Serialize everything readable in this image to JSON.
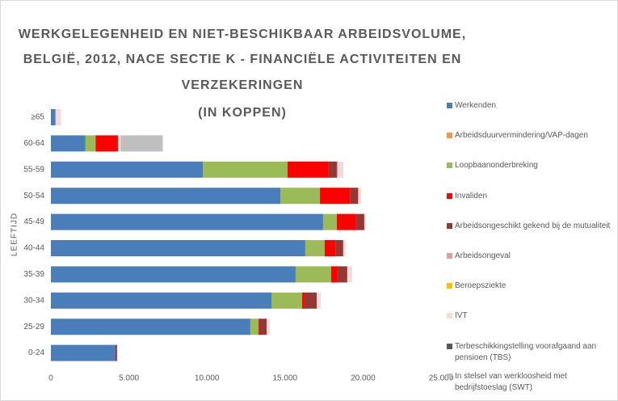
{
  "chart_data": {
    "type": "bar",
    "orientation": "horizontal",
    "stacked": true,
    "title": [
      "WERKGELEGENHEID EN NIET-BESCHIKBAAR ARBEIDSVOLUME,",
      "BELGIË, 2012, NACE SECTIE K - FINANCIËLE ACTIVITEITEN EN",
      "VERZEKERINGEN",
      "(IN KOPPEN)"
    ],
    "y_label": "LEEFTIJD",
    "categories": [
      "≥65",
      "60-64",
      "55-59",
      "50-54",
      "45-49",
      "40-44",
      "35-39",
      "30-34",
      "25-29",
      "0-24"
    ],
    "series": [
      {
        "name": "Werkenden",
        "color": "#4a7ebb",
        "values": [
          300,
          2200,
          9730,
          14700,
          17440,
          16300,
          15680,
          14130,
          12780,
          4140
        ]
      },
      {
        "name": "Arbeidsduurvermindering/VAP-dagen",
        "color": "#f79646",
        "values": [
          0,
          0,
          0,
          0,
          0,
          0,
          0,
          0,
          0,
          0
        ]
      },
      {
        "name": "Loopbaanonderbreking",
        "color": "#9bbb59",
        "values": [
          0,
          670,
          5430,
          2540,
          880,
          1240,
          2280,
          1970,
          520,
          0
        ]
      },
      {
        "name": "Invaliden",
        "color": "#ff0000",
        "values": [
          0,
          1350,
          2640,
          1920,
          1240,
          720,
          410,
          150,
          50,
          0
        ]
      },
      {
        "name": "Arbeidsongeschikt gekend bij de mutualiteit",
        "color": "#953735",
        "values": [
          0,
          100,
          520,
          520,
          520,
          470,
          620,
          780,
          470,
          100
        ]
      },
      {
        "name": "Arbeidsongeval",
        "color": "#e6999a",
        "values": [
          0,
          0,
          60,
          50,
          0,
          0,
          0,
          0,
          0,
          0
        ]
      },
      {
        "name": "Beroepsziekte",
        "color": "#ffc000",
        "values": [
          0,
          0,
          0,
          0,
          0,
          0,
          0,
          0,
          0,
          0
        ]
      },
      {
        "name": "IVT",
        "color": "#f2dcdb",
        "values": [
          350,
          150,
          360,
          150,
          100,
          150,
          310,
          260,
          200,
          30
        ]
      },
      {
        "name": "Terbeschikkingstelling voorafgaand aan pensioen (TBS)",
        "color": "#595959",
        "values": [
          0,
          0,
          0,
          0,
          0,
          0,
          0,
          0,
          0,
          0
        ]
      },
      {
        "name": "In stelsel van werkloosheid met bedrijfstoeslag (SWT)",
        "color": "#bfbfbf",
        "values": [
          0,
          2700,
          0,
          0,
          0,
          0,
          0,
          0,
          0,
          0
        ]
      }
    ],
    "xlim": [
      0,
      25000
    ],
    "xticks": [
      0,
      {
        "value": 5000,
        "label": "5.000"
      },
      {
        "value": 10000,
        "label": "10.000"
      },
      {
        "value": 15000,
        "label": "15.000"
      },
      {
        "value": 20000,
        "label": "20.000"
      },
      {
        "value": 25000,
        "label": "25.000"
      }
    ],
    "grid": false,
    "legend": "right"
  }
}
